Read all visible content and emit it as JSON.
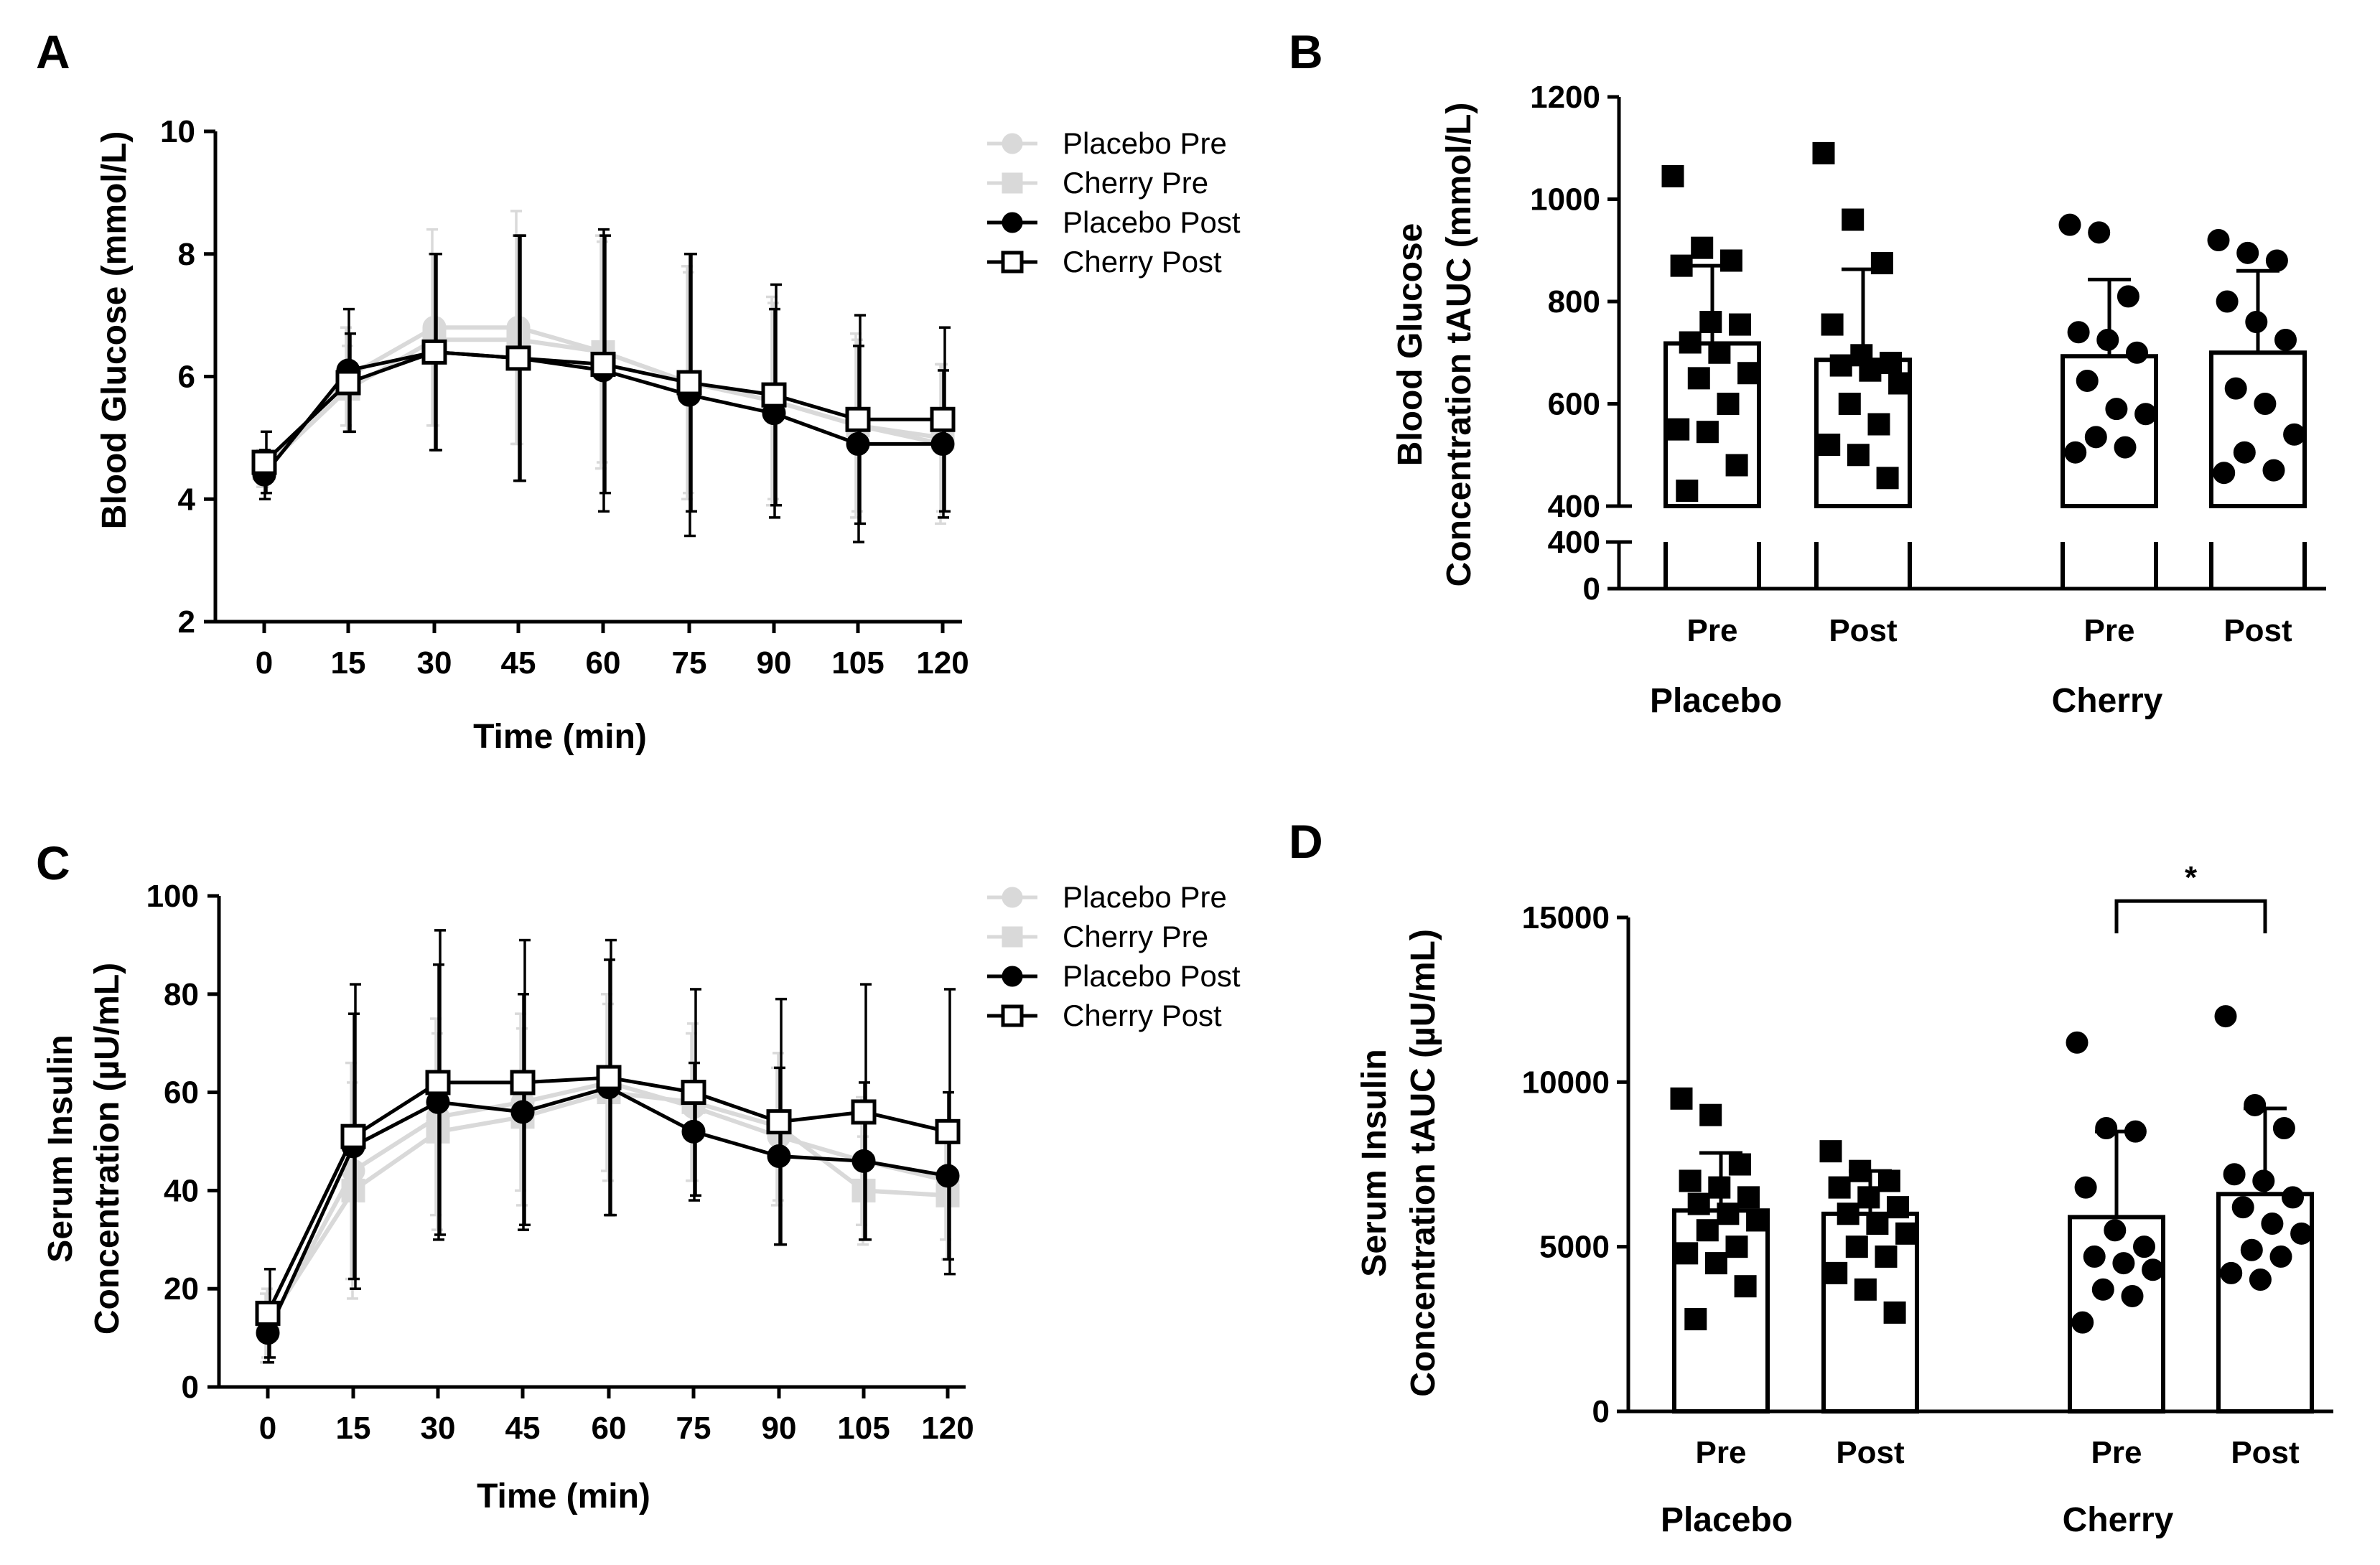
{
  "colors": {
    "pre": "#d9d9d9",
    "post": "#000000"
  },
  "chart_data": [
    {
      "panel": "A",
      "type": "line",
      "x": [
        0,
        15,
        30,
        45,
        60,
        75,
        90,
        105,
        120
      ],
      "xtick_labels": [
        "0",
        "15",
        "30",
        "45",
        "60",
        "75",
        "90",
        "105",
        "120"
      ],
      "xlabel": "Time (min)",
      "ylabel": "Blood Glucose (mmol/L)",
      "ylim": [
        2,
        10
      ],
      "yticks": [
        2,
        4,
        6,
        8,
        10
      ],
      "ytick_labels": [
        "2",
        "4",
        "6",
        "8",
        "10"
      ],
      "legend": [
        "Placebo Pre",
        "Cherry Pre",
        "Placebo Post",
        "Cherry Post"
      ],
      "series": [
        {
          "name": "Placebo Pre",
          "marker": "circle-filled",
          "color": "#d9d9d9",
          "values": [
            4.5,
            6.0,
            6.8,
            6.8,
            6.4,
            5.9,
            5.6,
            5.2,
            4.9
          ],
          "err": [
            0.3,
            0.8,
            1.6,
            1.9,
            1.9,
            1.9,
            1.7,
            1.5,
            1.3
          ]
        },
        {
          "name": "Cherry Pre",
          "marker": "square-filled",
          "color": "#d9d9d9",
          "values": [
            4.5,
            5.8,
            6.6,
            6.6,
            6.4,
            5.9,
            5.6,
            5.2,
            5.0
          ],
          "err": [
            0.3,
            0.7,
            1.4,
            1.7,
            1.8,
            1.8,
            1.6,
            1.4,
            1.2
          ]
        },
        {
          "name": "Placebo Post",
          "marker": "circle-filled",
          "color": "#000000",
          "values": [
            4.4,
            6.1,
            6.4,
            6.3,
            6.1,
            5.7,
            5.4,
            4.9,
            4.9
          ],
          "err": [
            0.4,
            1.0,
            1.6,
            2.0,
            2.3,
            2.3,
            1.7,
            1.6,
            1.2
          ]
        },
        {
          "name": "Cherry Post",
          "marker": "square-open",
          "color": "#000000",
          "values": [
            4.6,
            5.9,
            6.4,
            6.3,
            6.2,
            5.9,
            5.7,
            5.3,
            5.3
          ],
          "err": [
            0.5,
            0.8,
            1.6,
            2.0,
            2.1,
            2.1,
            1.8,
            1.7,
            1.5
          ]
        }
      ]
    },
    {
      "panel": "B",
      "type": "bar",
      "categories": [
        "Pre",
        "Post",
        "Pre",
        "Post"
      ],
      "groups": [
        "Placebo",
        "Cherry"
      ],
      "ylabel_lines": [
        "Blood Glucose",
        "Concentration tAUC (mmol/L)"
      ],
      "axis_break": true,
      "ylim_upper": [
        400,
        1200
      ],
      "yticks_upper": [
        400,
        600,
        800,
        1000,
        1200
      ],
      "ytick_labels_upper": [
        "400",
        "600",
        "800",
        "1000",
        "1200"
      ],
      "ylim_lower": [
        0,
        400
      ],
      "yticks_lower": [
        0,
        400
      ],
      "ytick_labels_lower": [
        "0",
        "400"
      ],
      "values": [
        718,
        686,
        693,
        700
      ],
      "sd": [
        152,
        177,
        150,
        160
      ],
      "markers": [
        "square",
        "square",
        "circle",
        "circle"
      ],
      "points": [
        [
          1045,
          905,
          880,
          870,
          760,
          755,
          720,
          700,
          660,
          650,
          600,
          550,
          545,
          480,
          430
        ],
        [
          1090,
          960,
          875,
          755,
          695,
          680,
          675,
          665,
          640,
          600,
          560,
          520,
          500,
          455
        ],
        [
          950,
          935,
          810,
          740,
          725,
          700,
          645,
          590,
          580,
          535,
          515,
          505
        ],
        [
          920,
          895,
          880,
          800,
          760,
          725,
          630,
          600,
          540,
          505,
          470,
          465
        ]
      ]
    },
    {
      "panel": "C",
      "type": "line",
      "x": [
        0,
        15,
        30,
        45,
        60,
        75,
        90,
        105,
        120
      ],
      "xtick_labels": [
        "0",
        "15",
        "30",
        "45",
        "60",
        "75",
        "90",
        "105",
        "120"
      ],
      "xlabel": "Time (min)",
      "ylabel_lines": [
        "Serum Insulin",
        "Concentration (µU/mL)"
      ],
      "ylim": [
        0,
        100
      ],
      "yticks": [
        0,
        20,
        40,
        60,
        80,
        100
      ],
      "ytick_labels": [
        "0",
        "20",
        "40",
        "60",
        "80",
        "100"
      ],
      "legend": [
        "Placebo Pre",
        "Cherry Pre",
        "Placebo Post",
        "Cherry Post"
      ],
      "series": [
        {
          "name": "Placebo Pre",
          "marker": "circle-filled",
          "color": "#d9d9d9",
          "values": [
            12,
            44,
            55,
            58,
            62,
            57,
            51,
            46,
            42
          ],
          "err": [
            7,
            22,
            20,
            18,
            18,
            15,
            14,
            13,
            12
          ]
        },
        {
          "name": "Cherry Pre",
          "marker": "square-filled",
          "color": "#d9d9d9",
          "values": [
            13,
            40,
            52,
            55,
            60,
            58,
            53,
            40,
            39
          ],
          "err": [
            7,
            22,
            20,
            18,
            18,
            16,
            15,
            11,
            13
          ]
        },
        {
          "name": "Placebo Post",
          "marker": "circle-filled",
          "color": "#000000",
          "values": [
            11,
            49,
            58,
            56,
            61,
            52,
            47,
            46,
            43
          ],
          "err": [
            6,
            27,
            28,
            24,
            26,
            14,
            18,
            16,
            17
          ]
        },
        {
          "name": "Cherry Post",
          "marker": "square-open",
          "color": "#000000",
          "values": [
            15,
            51,
            62,
            62,
            63,
            60,
            54,
            56,
            52
          ],
          "err": [
            9,
            31,
            31,
            29,
            28,
            21,
            25,
            26,
            29
          ]
        }
      ]
    },
    {
      "panel": "D",
      "type": "bar",
      "categories": [
        "Pre",
        "Post",
        "Pre",
        "Post"
      ],
      "groups": [
        "Placebo",
        "Cherry"
      ],
      "ylabel_lines": [
        "Serum Insulin",
        "Concentration tAUC (µU/mL)"
      ],
      "ylim": [
        0,
        15000
      ],
      "yticks": [
        0,
        5000,
        10000,
        15000
      ],
      "ytick_labels": [
        "0",
        "5000",
        "10000",
        "15000"
      ],
      "values": [
        6100,
        6000,
        5900,
        6600
      ],
      "sd": [
        1750,
        1300,
        2600,
        2600
      ],
      "markers": [
        "square",
        "square",
        "circle",
        "circle"
      ],
      "points": [
        [
          9500,
          9000,
          7500,
          7000,
          6800,
          6500,
          6300,
          6000,
          5800,
          5500,
          5000,
          4800,
          4500,
          3800,
          2800
        ],
        [
          7900,
          7300,
          7000,
          6800,
          6500,
          6200,
          6000,
          5700,
          5400,
          5000,
          4700,
          4200,
          3700,
          3000
        ],
        [
          11200,
          8600,
          8500,
          6800,
          5500,
          5000,
          4700,
          4500,
          4300,
          3700,
          3500,
          2700
        ],
        [
          12000,
          9300,
          8600,
          7200,
          7000,
          6500,
          6200,
          5700,
          5400,
          4900,
          4700,
          4200,
          4000
        ]
      ],
      "significance": {
        "label": "*",
        "from": 2,
        "to": 3,
        "y": 15500
      }
    }
  ]
}
